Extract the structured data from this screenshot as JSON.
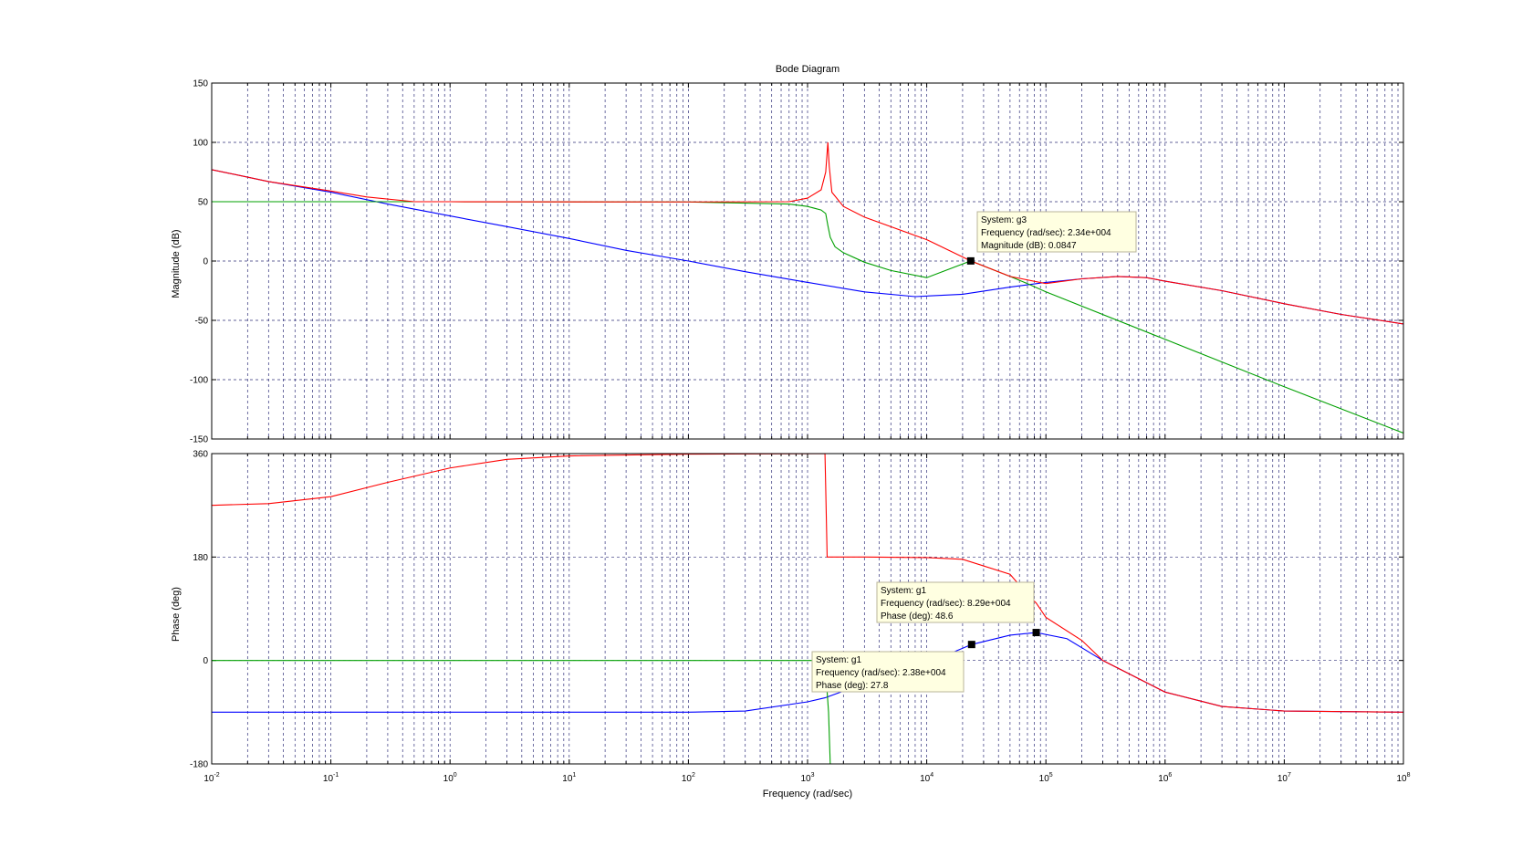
{
  "chart_data": {
    "type": "line",
    "title": "Bode Diagram",
    "xlabel": "Frequency  (rad/sec)",
    "xscale": "log",
    "xlim_exp": [
      -2,
      8
    ],
    "x_tick_base": "10",
    "x_tick_exponents": [
      "-2",
      "-1",
      "0",
      "1",
      "2",
      "3",
      "4",
      "5",
      "6",
      "7",
      "8"
    ],
    "grid": true,
    "magnitude": {
      "ylabel": "Magnitude (dB)",
      "ylim": [
        -150,
        150
      ],
      "yticks": [
        "150",
        "100",
        "50",
        "0",
        "-50",
        "-100",
        "-150"
      ],
      "series": [
        {
          "color": "#0000ff",
          "points": [
            [
              0.01,
              77
            ],
            [
              0.03,
              67
            ],
            [
              0.1,
              58
            ],
            [
              0.3,
              48
            ],
            [
              1,
              38
            ],
            [
              3,
              29
            ],
            [
              10,
              19
            ],
            [
              30,
              9
            ],
            [
              100,
              0
            ],
            [
              300,
              -9
            ],
            [
              1000,
              -18
            ],
            [
              3000,
              -26
            ],
            [
              8000,
              -30
            ],
            [
              20000,
              -28
            ],
            [
              50000,
              -22
            ],
            [
              100000,
              -18
            ],
            [
              200000,
              -15
            ],
            [
              400000,
              -13
            ],
            [
              700000,
              -14
            ],
            [
              1000000,
              -17
            ],
            [
              3000000,
              -25
            ],
            [
              10000000,
              -36
            ],
            [
              30000000,
              -45
            ],
            [
              100000000,
              -53
            ]
          ]
        },
        {
          "color": "#00a000",
          "points": [
            [
              0.01,
              50
            ],
            [
              1,
              50
            ],
            [
              100,
              49.8
            ],
            [
              700,
              48
            ],
            [
              1000,
              46
            ],
            [
              1300,
              43
            ],
            [
              1420,
              40
            ],
            [
              1480,
              30
            ],
            [
              1550,
              20
            ],
            [
              1700,
              12
            ],
            [
              2000,
              7
            ],
            [
              3000,
              -1
            ],
            [
              5000,
              -8
            ],
            [
              10000,
              -14
            ],
            [
              23400,
              0.0847
            ],
            [
              50000,
              -13
            ],
            [
              70000,
              -19
            ],
            [
              100000,
              -26
            ],
            [
              1000000,
              -66
            ],
            [
              10000000,
              -106
            ],
            [
              100000000,
              -145
            ]
          ]
        },
        {
          "color": "#ff0000",
          "points": [
            [
              0.01,
              77
            ],
            [
              0.03,
              67
            ],
            [
              0.1,
              59
            ],
            [
              0.2,
              54
            ],
            [
              0.5,
              50
            ],
            [
              1,
              50
            ],
            [
              100,
              49.8
            ],
            [
              700,
              50
            ],
            [
              1000,
              53
            ],
            [
              1300,
              60
            ],
            [
              1420,
              75
            ],
            [
              1480,
              100
            ],
            [
              1520,
              80
            ],
            [
              1600,
              58
            ],
            [
              2000,
              46
            ],
            [
              3000,
              37
            ],
            [
              10000,
              18
            ],
            [
              23400,
              0.0847
            ],
            [
              50000,
              -13
            ],
            [
              100000,
              -19
            ],
            [
              200000,
              -15
            ],
            [
              400000,
              -13
            ],
            [
              700000,
              -14
            ],
            [
              1000000,
              -17
            ],
            [
              3000000,
              -25
            ],
            [
              10000000,
              -36
            ],
            [
              30000000,
              -45
            ],
            [
              100000000,
              -53
            ]
          ]
        }
      ]
    },
    "phase": {
      "ylabel": "Phase (deg)",
      "ylim": [
        -180,
        360
      ],
      "yticks": [
        "360",
        "180",
        "0",
        "-180"
      ],
      "series": [
        {
          "color": "#0000ff",
          "points": [
            [
              0.01,
              -90
            ],
            [
              100,
              -90
            ],
            [
              300,
              -88
            ],
            [
              1000,
              -72
            ],
            [
              1400,
              -65
            ],
            [
              3000,
              -40
            ],
            [
              10000,
              -5
            ],
            [
              23800,
              27.8
            ],
            [
              50000,
              44
            ],
            [
              82900,
              48.6
            ],
            [
              150000,
              38
            ],
            [
              300000,
              0
            ],
            [
              1000000,
              -55
            ],
            [
              3000000,
              -80
            ],
            [
              10000000,
              -88
            ],
            [
              100000000,
              -90
            ]
          ]
        },
        {
          "color": "#00a000",
          "points": [
            [
              0.01,
              0
            ],
            [
              1400,
              0
            ],
            [
              1500,
              -90
            ],
            [
              1550,
              -180
            ],
            [
              100000000,
              -180
            ]
          ]
        },
        {
          "color": "#ff0000",
          "points": [
            [
              0.01,
              270
            ],
            [
              0.03,
              273
            ],
            [
              0.1,
              285
            ],
            [
              0.3,
              310
            ],
            [
              1,
              335
            ],
            [
              3,
              350
            ],
            [
              10,
              356
            ],
            [
              100,
              359
            ],
            [
              1400,
              360
            ],
            [
              1420,
              300
            ],
            [
              1460,
              180
            ],
            [
              1550,
              180
            ],
            [
              3000,
              180
            ],
            [
              10000,
              179
            ],
            [
              20000,
              176
            ],
            [
              50000,
              150
            ],
            [
              70000,
              115
            ],
            [
              82900,
              100
            ],
            [
              100000,
              75
            ],
            [
              200000,
              35
            ],
            [
              300000,
              0
            ],
            [
              1000000,
              -55
            ],
            [
              3000000,
              -80
            ],
            [
              10000000,
              -88
            ],
            [
              100000000,
              -90
            ]
          ]
        }
      ]
    },
    "datatips": [
      {
        "panel": "magnitude",
        "x": 23400,
        "y": 0.0847,
        "lines": [
          "System: g3",
          "Frequency (rad/sec): 2.34e+004",
          "Magnitude (dB): 0.0847"
        ]
      },
      {
        "panel": "phase",
        "x": 82900,
        "y": 48.6,
        "lines": [
          "System: g1",
          "Frequency (rad/sec): 8.29e+004",
          "Phase (deg): 48.6"
        ]
      },
      {
        "panel": "phase",
        "x": 23800,
        "y": 27.8,
        "lines": [
          "System: g1",
          "Frequency (rad/sec): 2.38e+004",
          "Phase (deg): 27.8"
        ]
      }
    ]
  }
}
